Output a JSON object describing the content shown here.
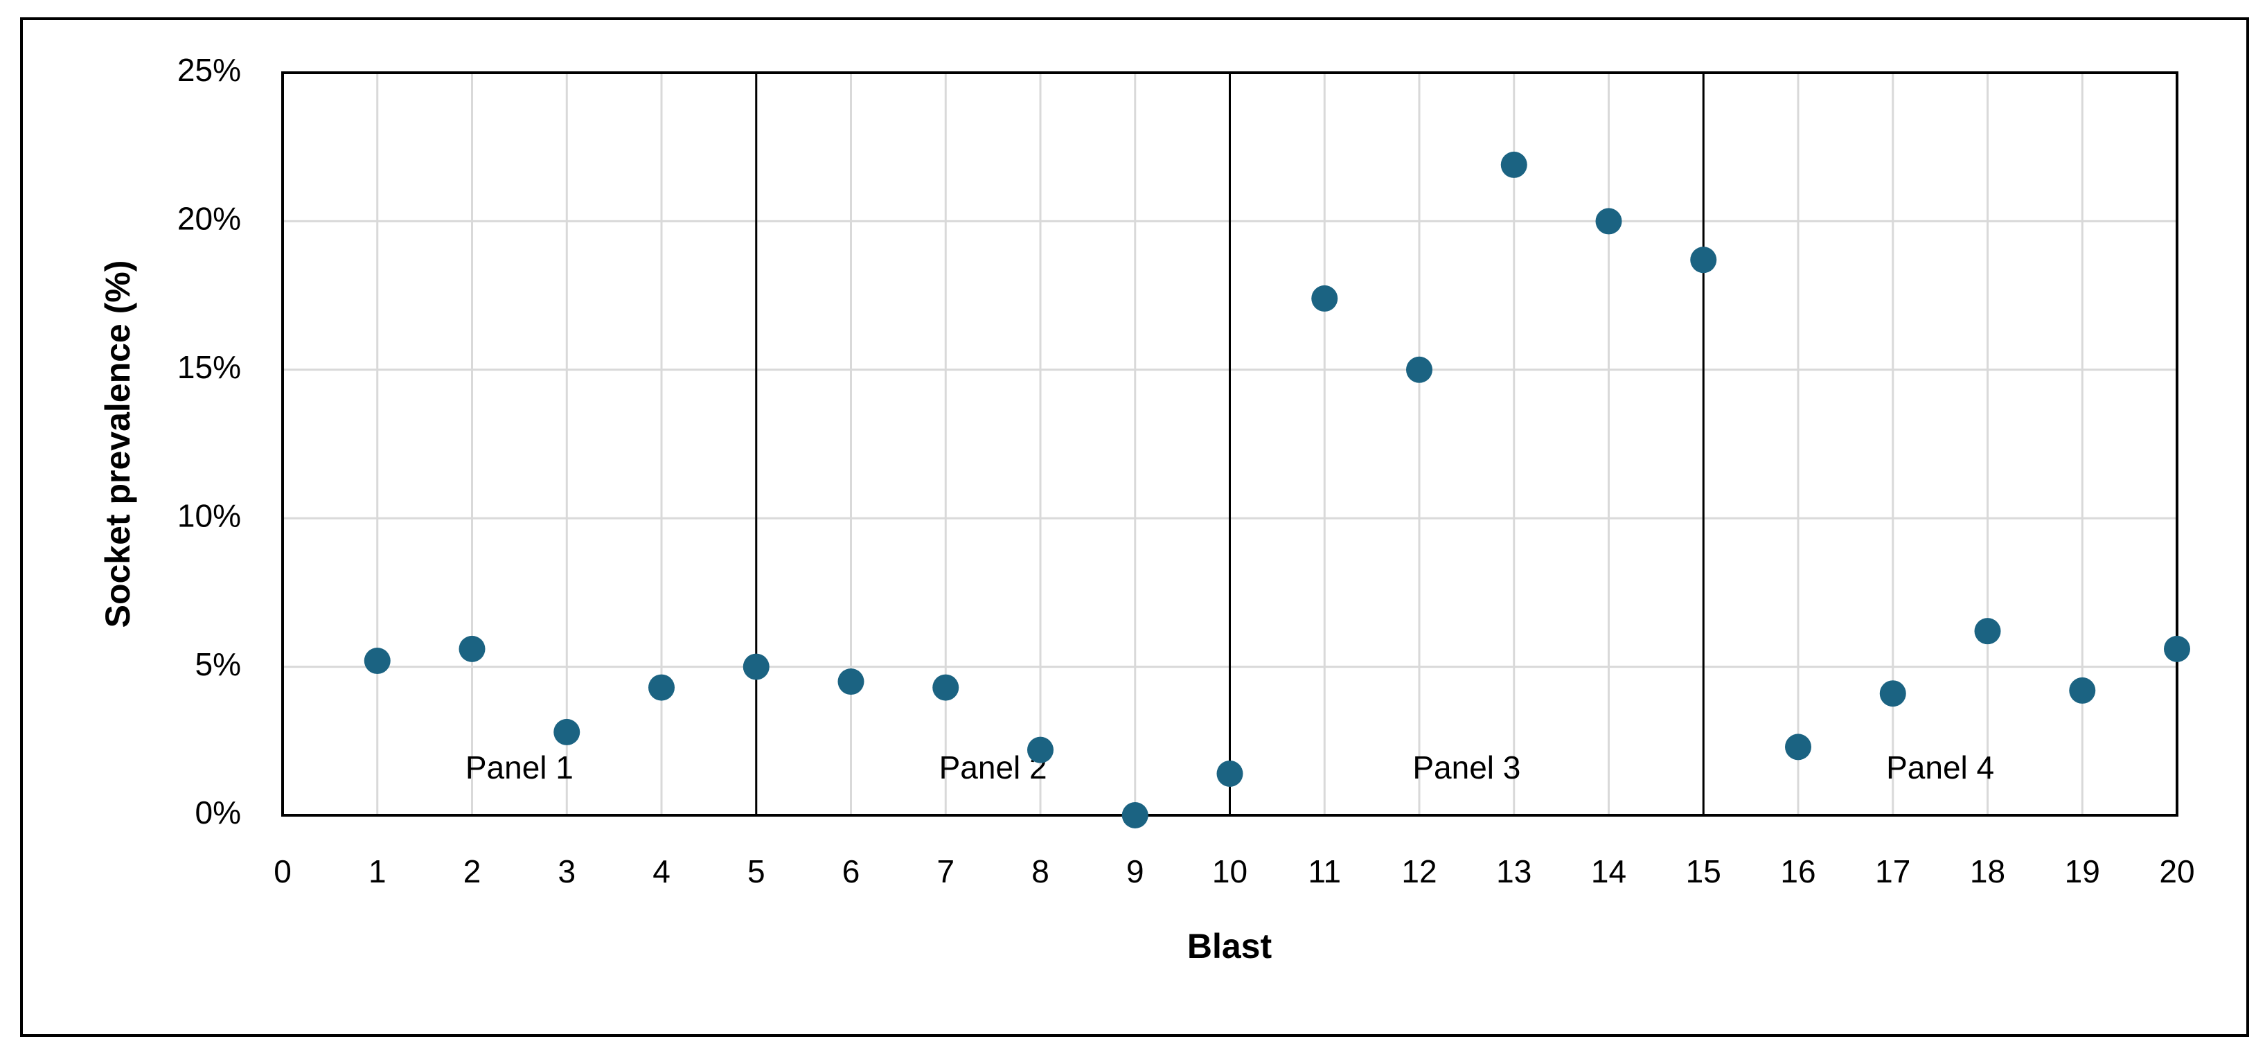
{
  "chart_data": {
    "type": "scatter",
    "x_label": "Blast",
    "y_label": "Socket prevalence (%)",
    "x": [
      1,
      2,
      3,
      4,
      5,
      6,
      7,
      8,
      9,
      10,
      11,
      12,
      13,
      14,
      15,
      16,
      17,
      18,
      19,
      20
    ],
    "series": [
      {
        "name": "Socket prevalence",
        "color": "#1b6382",
        "values": [
          5.2,
          5.6,
          2.8,
          4.3,
          5.0,
          4.5,
          4.3,
          2.2,
          0.0,
          1.4,
          17.4,
          15.0,
          21.9,
          20.0,
          18.7,
          2.3,
          4.1,
          6.2,
          4.2,
          5.6
        ]
      }
    ],
    "xlim": [
      0,
      20
    ],
    "ylim": [
      0,
      25
    ],
    "xticks": [
      0,
      1,
      2,
      3,
      4,
      5,
      6,
      7,
      8,
      9,
      10,
      11,
      12,
      13,
      14,
      15,
      16,
      17,
      18,
      19,
      20
    ],
    "yticks": [
      {
        "value": 0,
        "label": "0%"
      },
      {
        "value": 5,
        "label": "5%"
      },
      {
        "value": 10,
        "label": "10%"
      },
      {
        "value": 15,
        "label": "15%"
      },
      {
        "value": 20,
        "label": "20%"
      },
      {
        "value": 25,
        "label": "25%"
      }
    ],
    "grid": true,
    "panels": [
      {
        "label": "Panel 1",
        "x": [
          0,
          5
        ]
      },
      {
        "label": "Panel 2",
        "x": [
          5,
          10
        ]
      },
      {
        "label": "Panel 3",
        "x": [
          10,
          15
        ]
      },
      {
        "label": "Panel 4",
        "x": [
          15,
          20
        ]
      }
    ]
  }
}
